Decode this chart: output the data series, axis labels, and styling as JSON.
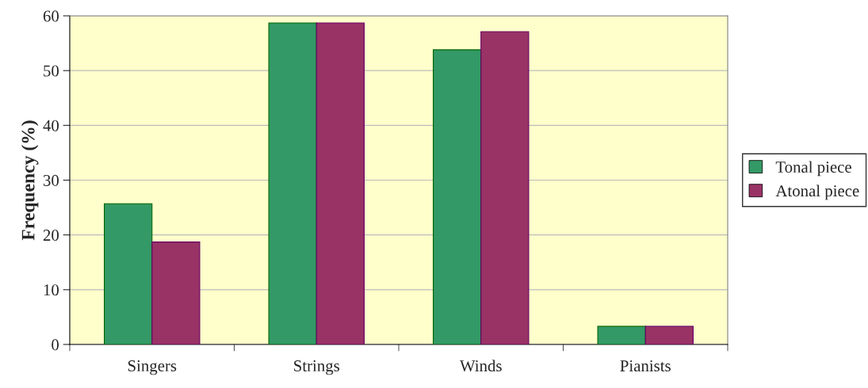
{
  "chart_data": {
    "type": "bar",
    "ylabel": "Frequency (%)",
    "categories": [
      "Singers",
      "Strings",
      "Winds",
      "Pianists"
    ],
    "series": [
      {
        "name": "Tonal piece",
        "color": "#339966",
        "values": [
          25.7,
          58.7,
          53.8,
          3.3
        ]
      },
      {
        "name": "Atonal piece",
        "color": "#993366",
        "values": [
          18.7,
          58.7,
          57.1,
          3.3
        ]
      }
    ],
    "ylim": [
      0,
      60
    ],
    "yticks": [
      0,
      10,
      20,
      30,
      40,
      50,
      60
    ],
    "grid": "y",
    "legend": "right"
  }
}
